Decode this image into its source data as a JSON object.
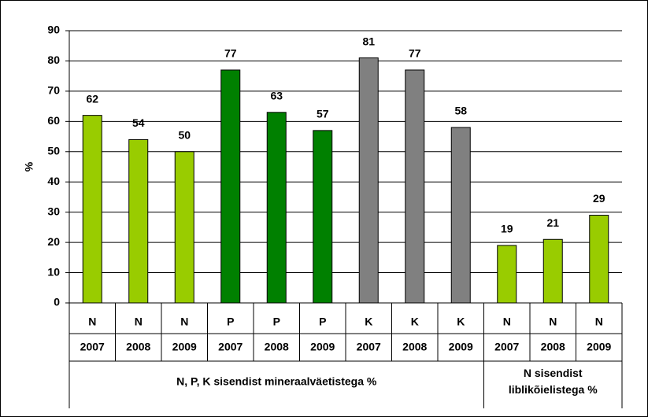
{
  "chart_data": {
    "type": "bar",
    "ylabel": "%",
    "categories": [
      "N",
      "N",
      "N",
      "P",
      "P",
      "P",
      "K",
      "K",
      "K",
      "N",
      "N",
      "N"
    ],
    "years": [
      "2007",
      "2008",
      "2009",
      "2007",
      "2008",
      "2009",
      "2007",
      "2008",
      "2009",
      "2007",
      "2008",
      "2009"
    ],
    "groups": [
      {
        "label": [
          "N, P, K sisendist mineraalväetistega %"
        ],
        "count": 9
      },
      {
        "label": [
          "N sisendist",
          "liblikõielistega %"
        ],
        "count": 3
      }
    ],
    "values": [
      62,
      54,
      50,
      77,
      63,
      57,
      81,
      77,
      58,
      19,
      21,
      29
    ],
    "colors": [
      "#99cc00",
      "#99cc00",
      "#99cc00",
      "#008000",
      "#008000",
      "#008000",
      "#808080",
      "#808080",
      "#808080",
      "#99cc00",
      "#99cc00",
      "#99cc00"
    ],
    "ylim": [
      0,
      90
    ],
    "yticks": [
      0,
      10,
      20,
      30,
      40,
      50,
      60,
      70,
      80,
      90
    ],
    "grid": true
  }
}
